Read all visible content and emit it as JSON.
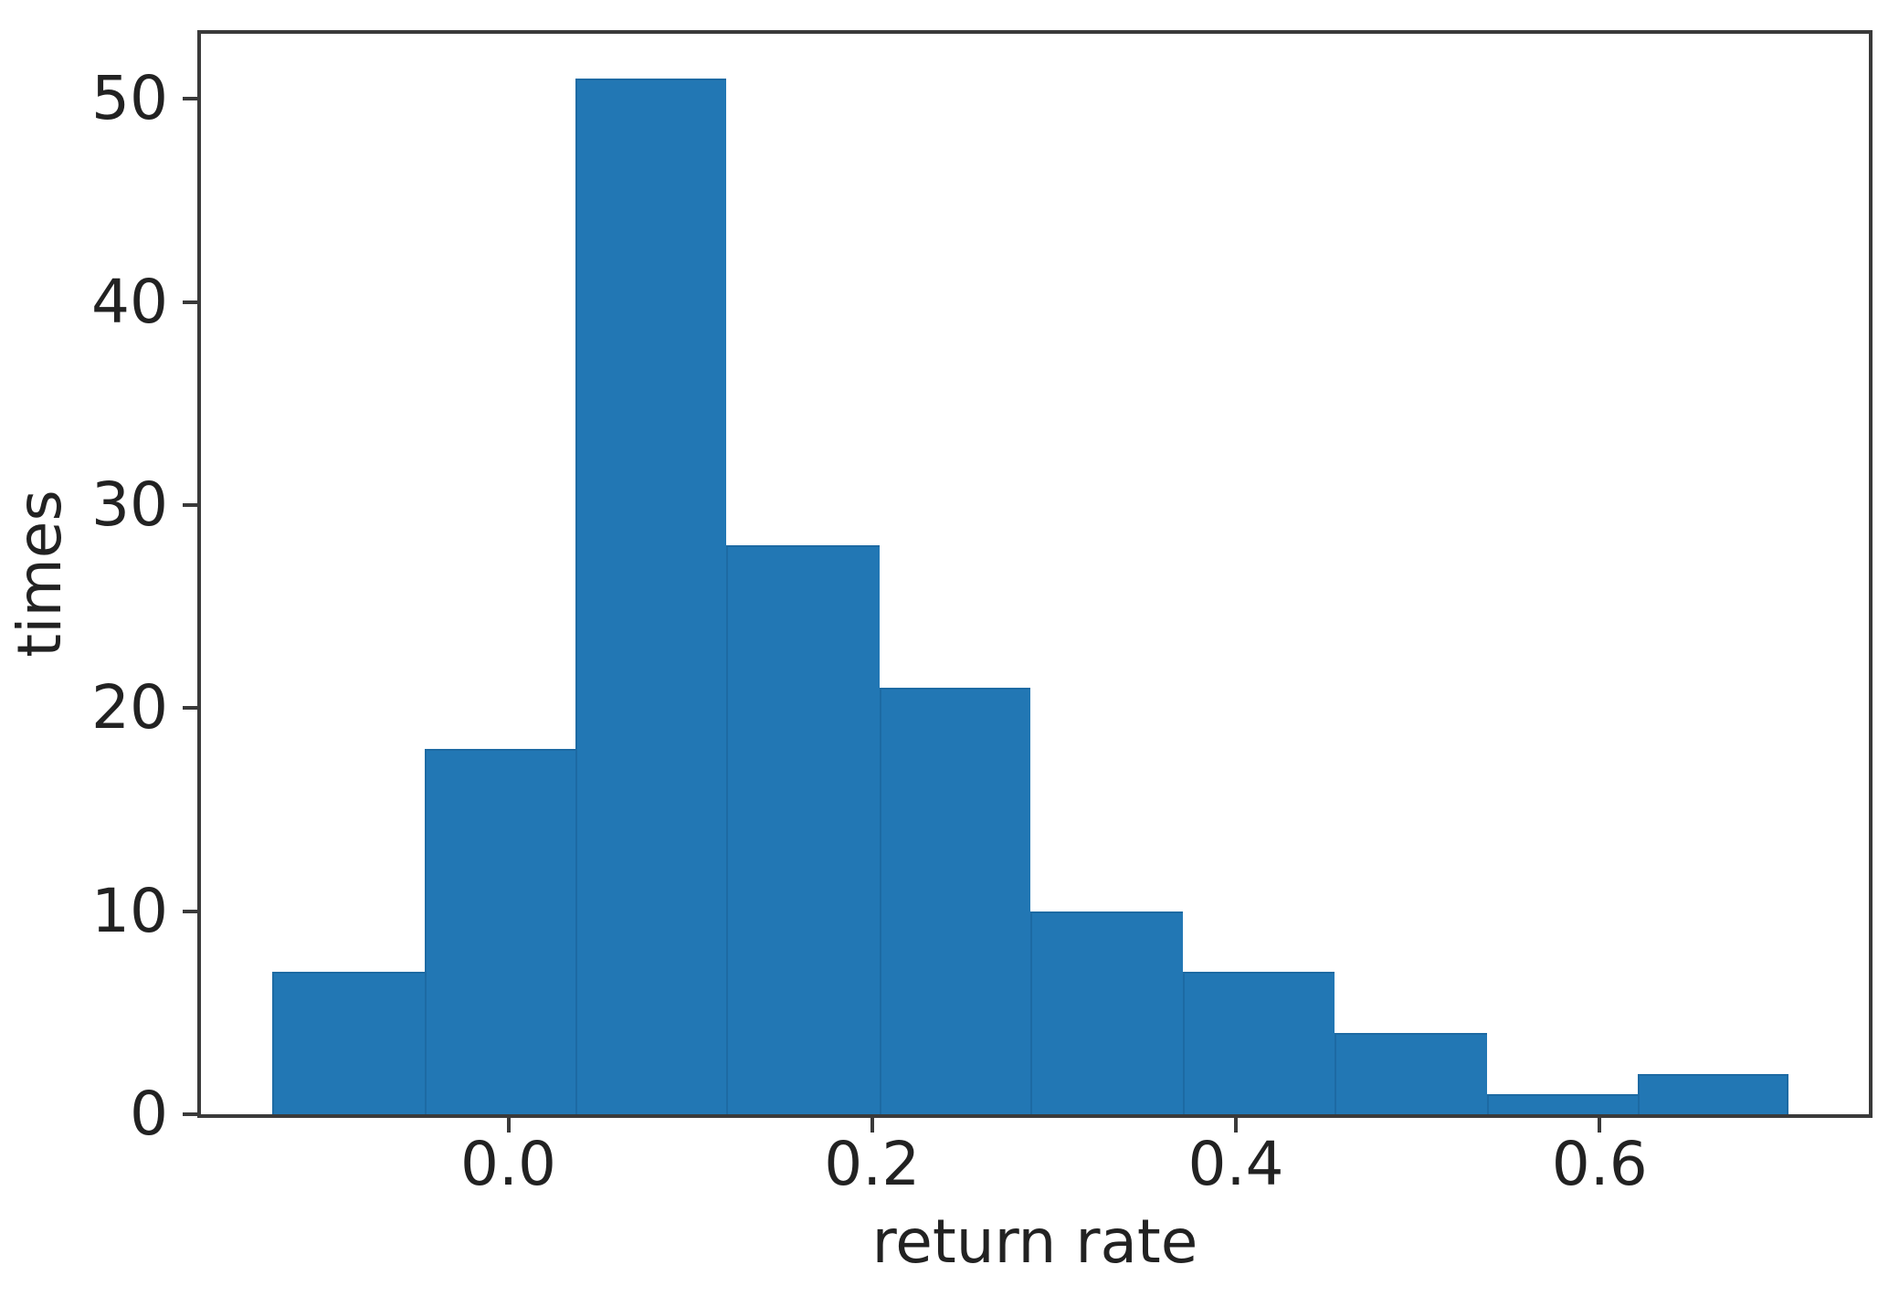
{
  "figure": {
    "background": "#ffffff"
  },
  "chart_data": {
    "type": "bar",
    "subtype": "histogram",
    "title": "",
    "xlabel": "return rate",
    "ylabel": "times",
    "bin_edges": [
      -0.13,
      -0.046,
      0.037,
      0.12,
      0.204,
      0.287,
      0.371,
      0.454,
      0.538,
      0.621,
      0.704
    ],
    "counts": [
      7,
      18,
      51,
      28,
      21,
      10,
      7,
      4,
      1,
      2
    ],
    "xlim": [
      -0.169,
      0.748
    ],
    "ylim": [
      0,
      53.2
    ],
    "x_ticks": [
      {
        "value": 0.0,
        "label": "0.0"
      },
      {
        "value": 0.2,
        "label": "0.2"
      },
      {
        "value": 0.4,
        "label": "0.4"
      },
      {
        "value": 0.6,
        "label": "0.6"
      }
    ],
    "y_ticks": [
      {
        "value": 0,
        "label": "0"
      },
      {
        "value": 10,
        "label": "10"
      },
      {
        "value": 20,
        "label": "20"
      },
      {
        "value": 30,
        "label": "30"
      },
      {
        "value": 40,
        "label": "40"
      },
      {
        "value": 50,
        "label": "50"
      }
    ],
    "grid": false,
    "legend": false,
    "colors": {
      "bar": "#2277b4",
      "bar_edge": "#1d6aa3",
      "axis": "#3a3a3a",
      "text": "#222222",
      "background": "#ffffff"
    }
  }
}
